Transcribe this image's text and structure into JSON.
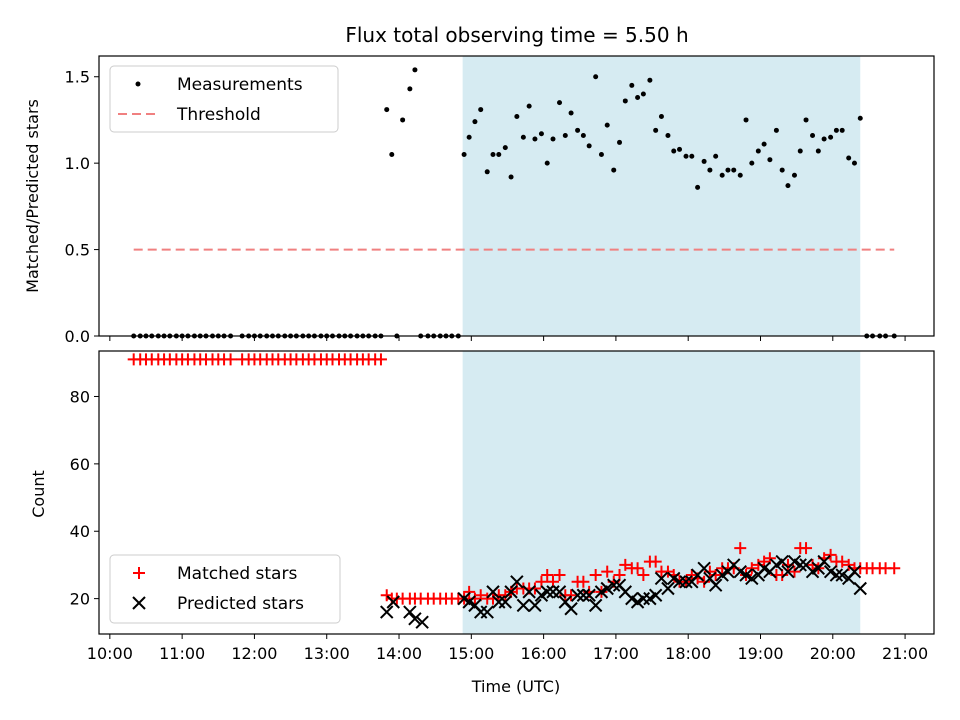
{
  "figure": {
    "title": "Flux total observing time = 5.50 h",
    "xlabel": "Time (UTC)",
    "x_ticks": [
      "10:00",
      "11:00",
      "12:00",
      "13:00",
      "14:00",
      "15:00",
      "16:00",
      "17:00",
      "18:00",
      "19:00",
      "20:00",
      "21:00"
    ],
    "x_tick_hours": [
      10,
      11,
      12,
      13,
      14,
      15,
      16,
      17,
      18,
      19,
      20,
      21
    ],
    "xlim_hours": [
      9.85,
      21.4
    ],
    "observing_window_hours": [
      14.88,
      20.38
    ],
    "colors": {
      "window": "#add8e6",
      "measurement": "#000000",
      "threshold": "#f08080",
      "matched": "#ff0000",
      "predicted": "#000000"
    }
  },
  "chart_data": [
    {
      "type": "scatter",
      "ylabel": "Matched/Predicted stars",
      "ylim": [
        0,
        1.62
      ],
      "y_ticks": [
        "0.0",
        "0.5",
        "1.0",
        "1.5"
      ],
      "y_tick_values": [
        0,
        0.5,
        1.0,
        1.5
      ],
      "legend": {
        "position": "top-left",
        "entries": [
          "Measurements",
          "Threshold"
        ]
      },
      "threshold": {
        "name": "Threshold",
        "value": 0.5,
        "x_range_hours": [
          10.33,
          20.85
        ]
      },
      "series": [
        {
          "name": "Measurements",
          "x_hours": [
            10.33,
            10.42,
            10.5,
            10.58,
            10.67,
            10.75,
            10.83,
            10.92,
            11.0,
            11.08,
            11.17,
            11.25,
            11.33,
            11.42,
            11.5,
            11.58,
            11.67,
            11.83,
            11.92,
            12.0,
            12.08,
            12.17,
            12.25,
            12.33,
            12.42,
            12.5,
            12.58,
            12.67,
            12.75,
            12.83,
            12.92,
            13.0,
            13.08,
            13.17,
            13.25,
            13.33,
            13.42,
            13.5,
            13.58,
            13.67,
            13.75,
            13.83,
            13.9,
            13.97,
            14.05,
            14.15,
            14.22,
            14.3,
            14.4,
            14.48,
            14.57,
            14.65,
            14.73,
            14.82,
            14.9,
            14.97,
            15.05,
            15.13,
            15.22,
            15.3,
            15.38,
            15.47,
            15.55,
            15.63,
            15.72,
            15.8,
            15.88,
            15.97,
            16.05,
            16.13,
            16.22,
            16.3,
            16.38,
            16.47,
            16.55,
            16.63,
            16.72,
            16.8,
            16.88,
            16.97,
            17.05,
            17.13,
            17.22,
            17.3,
            17.38,
            17.47,
            17.55,
            17.63,
            17.72,
            17.8,
            17.88,
            17.97,
            18.05,
            18.13,
            18.22,
            18.3,
            18.38,
            18.47,
            18.55,
            18.63,
            18.72,
            18.8,
            18.88,
            18.97,
            19.05,
            19.13,
            19.22,
            19.3,
            19.38,
            19.47,
            19.55,
            19.63,
            19.72,
            19.8,
            19.88,
            19.97,
            20.05,
            20.13,
            20.22,
            20.3,
            20.38,
            20.47,
            20.55,
            20.65,
            20.73,
            20.85
          ],
          "y": [
            0,
            0,
            0,
            0,
            0,
            0,
            0,
            0,
            0,
            0,
            0,
            0,
            0,
            0,
            0,
            0,
            0,
            0,
            0,
            0,
            0,
            0,
            0,
            0,
            0,
            0,
            0,
            0,
            0,
            0,
            0,
            0,
            0,
            0,
            0,
            0,
            0,
            0,
            0,
            0,
            0,
            1.31,
            1.05,
            0,
            1.25,
            1.43,
            1.54,
            0,
            0,
            0,
            0,
            0,
            0,
            0,
            1.05,
            1.15,
            1.24,
            1.31,
            0.95,
            1.05,
            1.05,
            1.09,
            0.92,
            1.27,
            1.15,
            1.33,
            1.14,
            1.17,
            1.0,
            1.14,
            1.35,
            1.16,
            1.29,
            1.19,
            1.16,
            1.1,
            1.5,
            1.05,
            1.22,
            0.96,
            1.12,
            1.36,
            1.45,
            1.38,
            1.4,
            1.48,
            1.19,
            1.27,
            1.16,
            1.07,
            1.08,
            1.04,
            1.04,
            0.86,
            1.01,
            0.96,
            1.04,
            0.93,
            0.96,
            0.96,
            0.93,
            1.25,
            1.0,
            1.07,
            1.11,
            1.02,
            1.19,
            0.96,
            0.87,
            0.93,
            1.07,
            1.25,
            1.16,
            1.07,
            1.14,
            1.15,
            1.19,
            1.19,
            1.03,
            1.0,
            1.26,
            0,
            0,
            0,
            0,
            0
          ]
        }
      ]
    },
    {
      "type": "scatter",
      "ylabel": "Count",
      "ylim": [
        9.5,
        93.5
      ],
      "y_ticks": [
        "20",
        "40",
        "60",
        "80"
      ],
      "y_tick_values": [
        20,
        40,
        60,
        80
      ],
      "legend": {
        "position": "bottom-left",
        "entries": [
          "Matched stars",
          "Predicted stars"
        ]
      },
      "series": [
        {
          "name": "Matched stars",
          "marker": "plus",
          "x_hours": [
            10.33,
            10.42,
            10.5,
            10.58,
            10.67,
            10.75,
            10.83,
            10.92,
            11.0,
            11.08,
            11.17,
            11.25,
            11.33,
            11.42,
            11.5,
            11.58,
            11.67,
            11.83,
            11.92,
            12.0,
            12.08,
            12.17,
            12.25,
            12.33,
            12.42,
            12.5,
            12.58,
            12.67,
            12.75,
            12.83,
            12.92,
            13.0,
            13.08,
            13.17,
            13.25,
            13.33,
            13.42,
            13.5,
            13.58,
            13.67,
            13.75,
            13.83,
            13.9,
            13.97,
            14.05,
            14.15,
            14.22,
            14.3,
            14.4,
            14.48,
            14.57,
            14.65,
            14.73,
            14.82,
            14.9,
            14.97,
            15.05,
            15.13,
            15.22,
            15.3,
            15.38,
            15.47,
            15.55,
            15.63,
            15.72,
            15.8,
            15.88,
            15.97,
            16.05,
            16.13,
            16.22,
            16.3,
            16.38,
            16.47,
            16.55,
            16.63,
            16.72,
            16.8,
            16.88,
            16.97,
            17.05,
            17.13,
            17.22,
            17.3,
            17.38,
            17.47,
            17.55,
            17.63,
            17.72,
            17.8,
            17.88,
            17.97,
            18.05,
            18.13,
            18.22,
            18.3,
            18.38,
            18.47,
            18.55,
            18.63,
            18.72,
            18.8,
            18.88,
            18.97,
            19.05,
            19.13,
            19.22,
            19.3,
            19.38,
            19.47,
            19.55,
            19.63,
            19.72,
            19.8,
            19.88,
            19.97,
            20.05,
            20.13,
            20.22,
            20.3,
            20.38,
            20.47,
            20.55,
            20.65,
            20.73,
            20.85
          ],
          "y": [
            91,
            91,
            91,
            91,
            91,
            91,
            91,
            91,
            91,
            91,
            91,
            91,
            91,
            91,
            91,
            91,
            91,
            91,
            91,
            91,
            91,
            91,
            91,
            91,
            91,
            91,
            91,
            91,
            91,
            91,
            91,
            91,
            91,
            91,
            91,
            91,
            91,
            91,
            91,
            91,
            91,
            21,
            20,
            20,
            20,
            20,
            20,
            20,
            20,
            20,
            20,
            20,
            20,
            20,
            20,
            22,
            20,
            21,
            20,
            20,
            21,
            21,
            22,
            23,
            23,
            23,
            23,
            25,
            27,
            25,
            27,
            21,
            21,
            25,
            25,
            22,
            27,
            22,
            28,
            25,
            27,
            30,
            29,
            29,
            27,
            31,
            31,
            28,
            28,
            27,
            25,
            25,
            27,
            26,
            25,
            28,
            27,
            29,
            29,
            29,
            35,
            27,
            29,
            30,
            31,
            32,
            27,
            27,
            30,
            28,
            35,
            35,
            30,
            29,
            32,
            33,
            31,
            31,
            30,
            29,
            29,
            29,
            29,
            29,
            29,
            29
          ]
        },
        {
          "name": "Predicted stars",
          "marker": "x",
          "x_hours": [
            13.83,
            13.92,
            14.15,
            14.22,
            14.32,
            14.9,
            14.97,
            15.05,
            15.13,
            15.22,
            15.3,
            15.38,
            15.47,
            15.55,
            15.63,
            15.72,
            15.8,
            15.88,
            15.97,
            16.05,
            16.13,
            16.22,
            16.3,
            16.38,
            16.47,
            16.55,
            16.63,
            16.72,
            16.8,
            16.88,
            16.97,
            17.05,
            17.13,
            17.22,
            17.3,
            17.38,
            17.47,
            17.55,
            17.63,
            17.72,
            17.8,
            17.88,
            17.97,
            18.05,
            18.13,
            18.22,
            18.3,
            18.38,
            18.47,
            18.55,
            18.63,
            18.72,
            18.8,
            18.88,
            18.97,
            19.05,
            19.13,
            19.22,
            19.3,
            19.38,
            19.47,
            19.55,
            19.63,
            19.72,
            19.8,
            19.88,
            19.97,
            20.05,
            20.13,
            20.22,
            20.3,
            20.38
          ],
          "y": [
            16,
            19,
            16,
            14,
            13,
            20,
            19,
            18,
            16,
            16,
            22,
            19,
            19,
            22,
            25,
            18,
            22,
            18,
            21,
            22,
            22,
            22,
            19,
            17,
            21,
            21,
            21,
            18,
            22,
            23,
            24,
            24,
            22,
            20,
            19,
            20,
            20,
            21,
            26,
            23,
            26,
            25,
            25,
            25,
            27,
            29,
            26,
            24,
            27,
            28,
            30,
            28,
            27,
            26,
            27,
            29,
            28,
            30,
            31,
            28,
            31,
            30,
            30,
            28,
            29,
            31,
            28,
            27,
            27,
            26,
            28,
            23
          ]
        }
      ]
    }
  ]
}
